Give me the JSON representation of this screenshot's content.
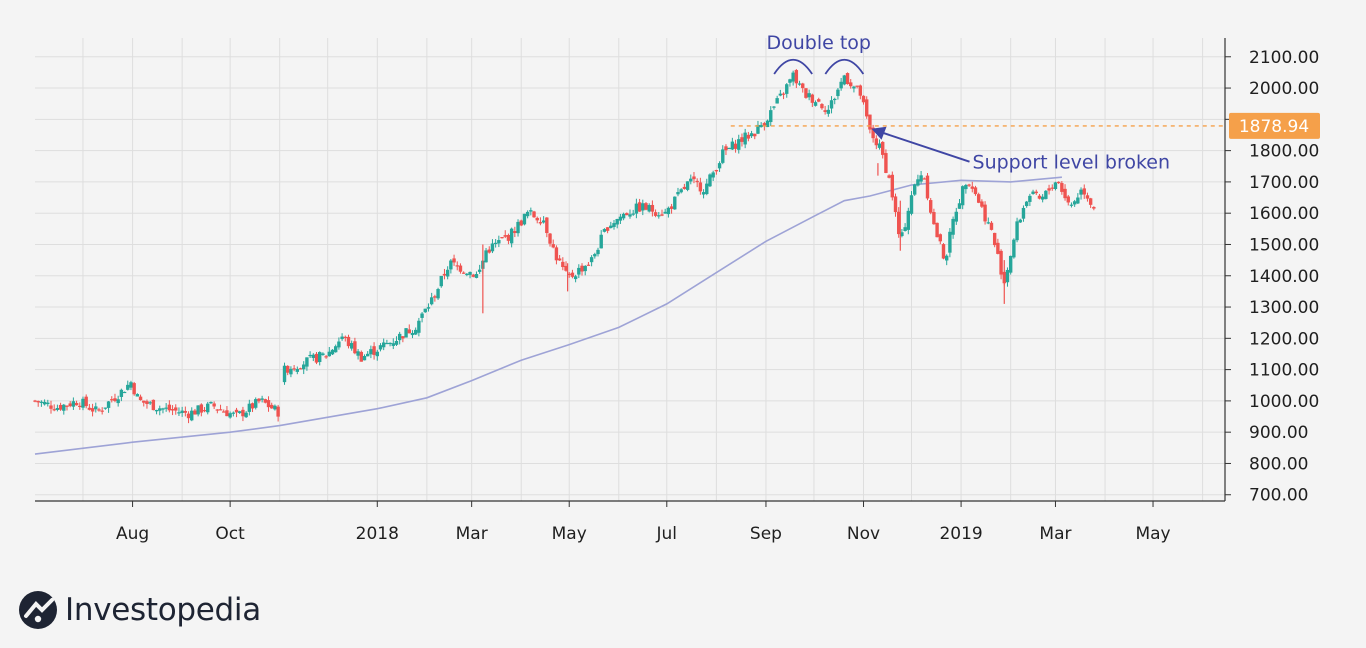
{
  "brand": {
    "name": "Investopedia",
    "icon": "investopedia-logo-icon"
  },
  "colors": {
    "background": "#f4f4f4",
    "grid": "#dedede",
    "axis": "#333333",
    "up": "#26a69a",
    "down": "#ef5350",
    "moving_average": "#9ea3d6",
    "support_line": "#f5a04a",
    "annotation": "#3f46a4",
    "price_tag": "#f5a04a"
  },
  "chart_data": {
    "type": "candlestick",
    "title": "",
    "xlabel": "",
    "ylabel": "",
    "x_ticks": [
      "Aug",
      "Oct",
      "2018",
      "Mar",
      "May",
      "Jul",
      "Sep",
      "Nov",
      "2019",
      "Mar",
      "May"
    ],
    "y_ticks": [
      "700.00",
      "800.00",
      "900.00",
      "1000.00",
      "1100.00",
      "1200.00",
      "1300.00",
      "1400.00",
      "1500.00",
      "1600.00",
      "1700.00",
      "1800.00",
      "1900.00",
      "2000.00",
      "2100.00"
    ],
    "ylim": [
      680,
      2160
    ],
    "x_range": [
      "2017-06-01",
      "2019-06-15"
    ],
    "grid": true,
    "close_path": [
      [
        "2017-06-01",
        1000
      ],
      [
        "2017-06-15",
        980
      ],
      [
        "2017-06-28",
        1000
      ],
      [
        "2017-07-10",
        965
      ],
      [
        "2017-07-25",
        1030
      ],
      [
        "2017-07-31",
        1060
      ],
      [
        "2017-08-05",
        1000
      ],
      [
        "2017-08-20",
        975
      ],
      [
        "2017-09-05",
        960
      ],
      [
        "2017-09-20",
        985
      ],
      [
        "2017-10-05",
        950
      ],
      [
        "2017-10-20",
        1000
      ],
      [
        "2017-10-31",
        965
      ],
      [
        "2017-11-03",
        1100
      ],
      [
        "2017-11-20",
        1130
      ],
      [
        "2017-12-01",
        1150
      ],
      [
        "2017-12-10",
        1205
      ],
      [
        "2017-12-22",
        1140
      ],
      [
        "2018-01-10",
        1190
      ],
      [
        "2018-01-25",
        1240
      ],
      [
        "2018-02-05",
        1330
      ],
      [
        "2018-02-15",
        1440
      ],
      [
        "2018-02-25",
        1420
      ],
      [
        "2018-03-05",
        1400
      ],
      [
        "2018-03-10",
        1480
      ],
      [
        "2018-03-25",
        1530
      ],
      [
        "2018-04-05",
        1600
      ],
      [
        "2018-04-15",
        1580
      ],
      [
        "2018-04-22",
        1470
      ],
      [
        "2018-04-30",
        1390
      ],
      [
        "2018-05-05",
        1410
      ],
      [
        "2018-05-15",
        1450
      ],
      [
        "2018-05-25",
        1560
      ],
      [
        "2018-06-05",
        1600
      ],
      [
        "2018-06-15",
        1620
      ],
      [
        "2018-06-30",
        1600
      ],
      [
        "2018-07-15",
        1700
      ],
      [
        "2018-07-25",
        1680
      ],
      [
        "2018-08-05",
        1790
      ],
      [
        "2018-08-15",
        1830
      ],
      [
        "2018-08-25",
        1860
      ],
      [
        "2018-09-01",
        1900
      ],
      [
        "2018-09-10",
        1970
      ],
      [
        "2018-09-18",
        2040
      ],
      [
        "2018-09-25",
        1980
      ],
      [
        "2018-10-03",
        1960
      ],
      [
        "2018-10-10",
        1930
      ],
      [
        "2018-10-20",
        2040
      ],
      [
        "2018-10-30",
        1980
      ],
      [
        "2018-11-05",
        1860
      ],
      [
        "2018-11-12",
        1800
      ],
      [
        "2018-11-18",
        1690
      ],
      [
        "2018-11-24",
        1500
      ],
      [
        "2018-12-01",
        1660
      ],
      [
        "2018-12-08",
        1740
      ],
      [
        "2018-12-15",
        1560
      ],
      [
        "2018-12-22",
        1450
      ],
      [
        "2018-12-28",
        1600
      ],
      [
        "2019-01-05",
        1720
      ],
      [
        "2019-01-12",
        1640
      ],
      [
        "2019-01-20",
        1540
      ],
      [
        "2019-01-28",
        1380
      ],
      [
        "2019-02-05",
        1560
      ],
      [
        "2019-02-12",
        1660
      ],
      [
        "2019-02-20",
        1640
      ],
      [
        "2019-03-02",
        1710
      ],
      [
        "2019-03-10",
        1620
      ],
      [
        "2019-03-18",
        1680
      ],
      [
        "2019-03-25",
        1620
      ]
    ],
    "moving_average": [
      [
        "2017-06-01",
        830
      ],
      [
        "2017-08-01",
        868
      ],
      [
        "2017-10-01",
        900
      ],
      [
        "2017-11-01",
        921
      ],
      [
        "2018-01-01",
        975
      ],
      [
        "2018-02-01",
        1010
      ],
      [
        "2018-03-01",
        1065
      ],
      [
        "2018-04-01",
        1130
      ],
      [
        "2018-05-01",
        1180
      ],
      [
        "2018-06-01",
        1235
      ],
      [
        "2018-07-01",
        1310
      ],
      [
        "2018-08-01",
        1410
      ],
      [
        "2018-09-01",
        1510
      ],
      [
        "2018-10-01",
        1590
      ],
      [
        "2018-10-20",
        1640
      ],
      [
        "2018-11-05",
        1655
      ],
      [
        "2018-12-01",
        1690
      ],
      [
        "2019-01-01",
        1705
      ],
      [
        "2019-02-01",
        1700
      ],
      [
        "2019-03-05",
        1715
      ]
    ],
    "support_level": {
      "value": 1878.94,
      "label": "1878.94"
    },
    "annotations": [
      {
        "text": "Double top",
        "position": "top",
        "peaks": [
          [
            "2018-09-18",
            2045
          ],
          [
            "2018-10-20",
            2045
          ]
        ]
      },
      {
        "text": "Support level broken",
        "arrow_to": [
          "2018-11-06",
          1870
        ]
      }
    ]
  }
}
